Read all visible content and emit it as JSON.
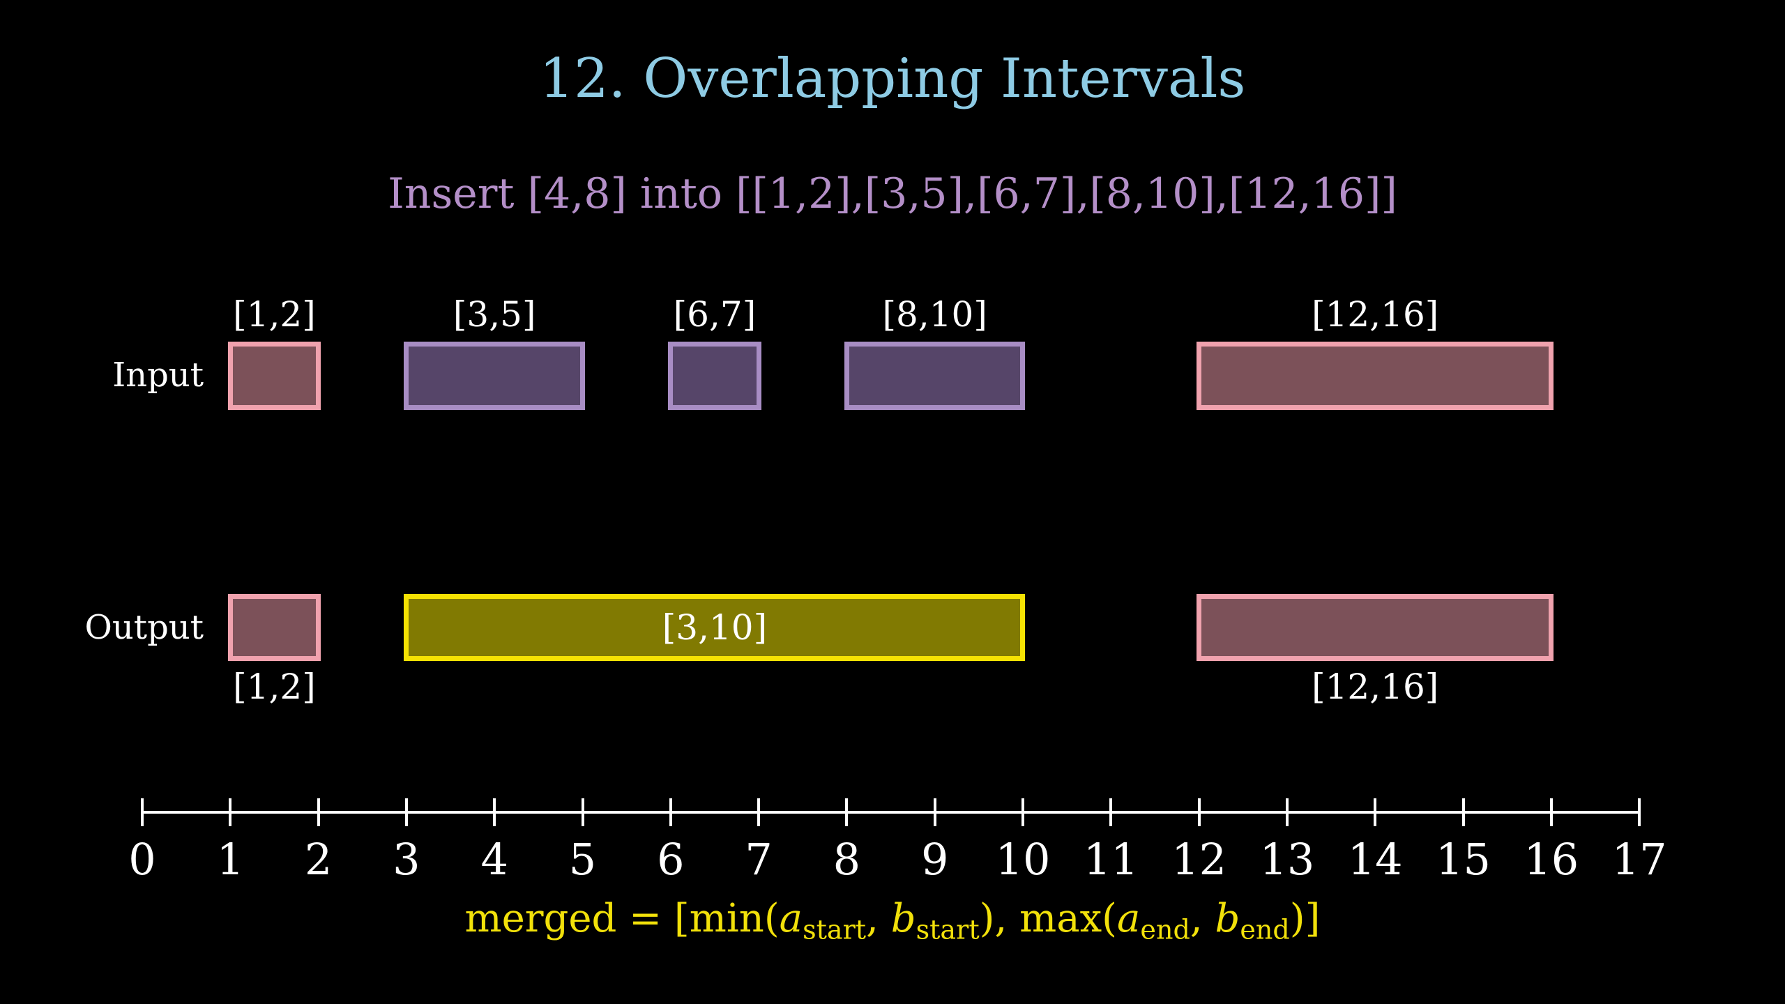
{
  "title": "12. Overlapping Intervals",
  "subtitle": "Insert [4,8] into [[1,2],[3,5],[6,7],[8,10],[12,16]]",
  "colors": {
    "background": "#000000",
    "title": "#8ecbe4",
    "subtitle": "#b48fc8",
    "text": "#ffffff",
    "formula": "#f2e10a",
    "pink": {
      "border": "#f0a2ae",
      "fill": "#7c5159"
    },
    "purple": {
      "border": "#a88dc4",
      "fill": "#564569"
    },
    "yellow": {
      "border": "#f5e203",
      "fill": "#817a02"
    }
  },
  "input_row": {
    "label": "Input",
    "intervals": [
      {
        "label": "[1,2]",
        "start": 1,
        "end": 2,
        "color": "pink",
        "label_pos": "above"
      },
      {
        "label": "[3,5]",
        "start": 3,
        "end": 5,
        "color": "purple",
        "label_pos": "above"
      },
      {
        "label": "[6,7]",
        "start": 6,
        "end": 7,
        "color": "purple",
        "label_pos": "above"
      },
      {
        "label": "[8,10]",
        "start": 8,
        "end": 10,
        "color": "purple",
        "label_pos": "above"
      },
      {
        "label": "[12,16]",
        "start": 12,
        "end": 16,
        "color": "pink",
        "label_pos": "above"
      }
    ]
  },
  "output_row": {
    "label": "Output",
    "intervals": [
      {
        "label": "[1,2]",
        "start": 1,
        "end": 2,
        "color": "pink",
        "label_pos": "below"
      },
      {
        "label": "[3,10]",
        "start": 3,
        "end": 10,
        "color": "yellow",
        "label_pos": "inside"
      },
      {
        "label": "[12,16]",
        "start": 12,
        "end": 16,
        "color": "pink",
        "label_pos": "below"
      }
    ]
  },
  "number_line": {
    "min": 0,
    "max": 17,
    "tick_labels": [
      "0",
      "1",
      "2",
      "3",
      "4",
      "5",
      "6",
      "7",
      "8",
      "9",
      "10",
      "11",
      "12",
      "13",
      "14",
      "15",
      "16",
      "17"
    ]
  },
  "formula": {
    "text": "merged = [min(a_start, b_start), max(a_end, b_end)]",
    "segments": [
      {
        "t": "merged = [min(",
        "style": "roman"
      },
      {
        "t": "a",
        "style": "italic"
      },
      {
        "t": "start",
        "style": "sub"
      },
      {
        "t": ", ",
        "style": "roman"
      },
      {
        "t": "b",
        "style": "italic"
      },
      {
        "t": "start",
        "style": "sub"
      },
      {
        "t": "), max(",
        "style": "roman"
      },
      {
        "t": "a",
        "style": "italic"
      },
      {
        "t": "end",
        "style": "sub"
      },
      {
        "t": ", ",
        "style": "roman"
      },
      {
        "t": "b",
        "style": "italic"
      },
      {
        "t": "end",
        "style": "sub"
      },
      {
        "t": ")]",
        "style": "roman"
      }
    ]
  }
}
